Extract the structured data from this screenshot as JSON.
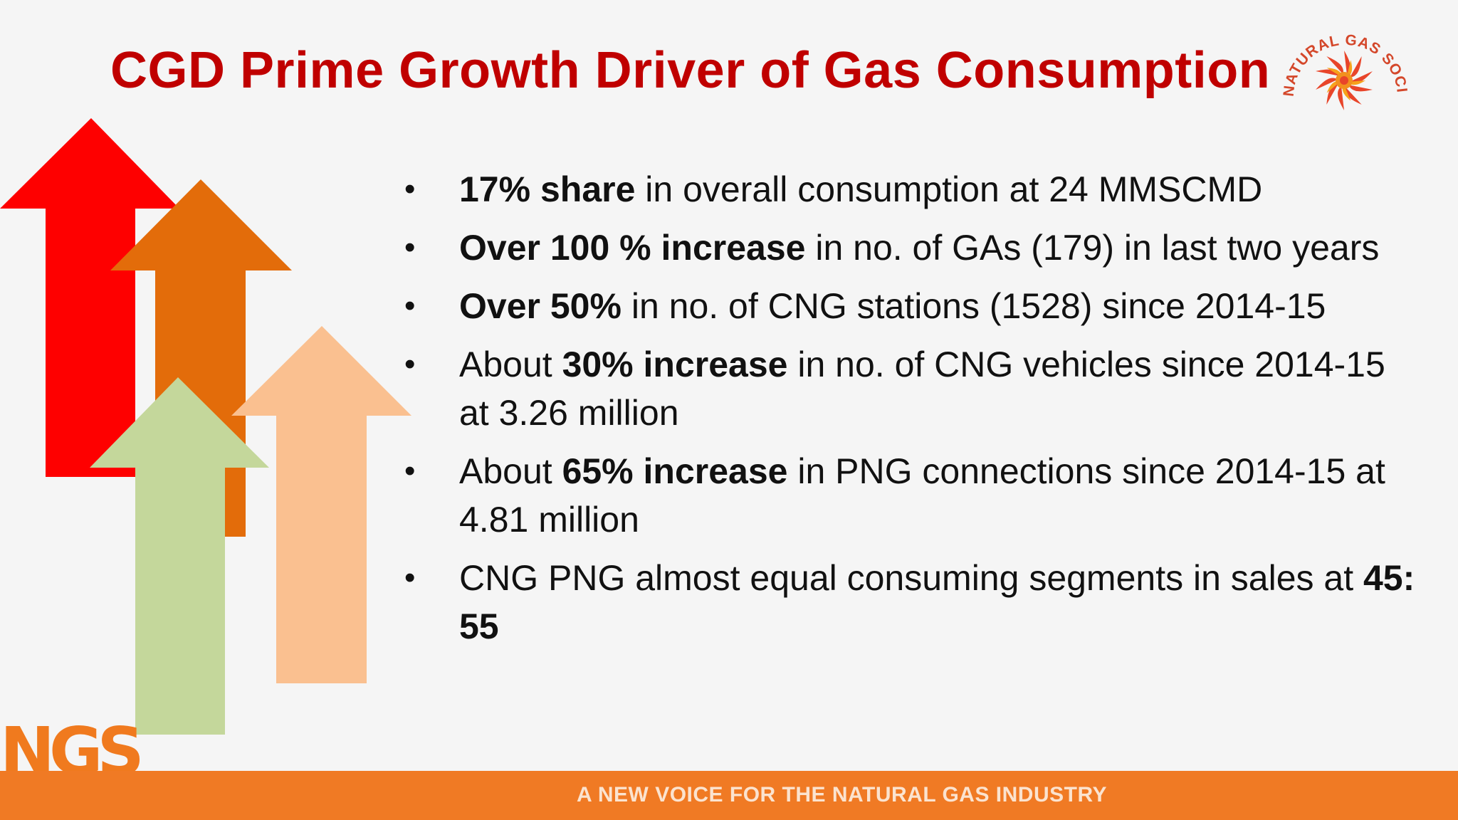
{
  "slide": {
    "title": "CGD Prime Growth Driver of Gas Consumption",
    "logo_text": "NATURAL GAS SOCIETY",
    "brand_mark": "NGS",
    "tagline": "A NEW VOICE FOR THE NATURAL GAS INDUSTRY",
    "bullet_glyph": "•"
  },
  "bullets": [
    {
      "bold": "17% share",
      "text": " in overall consumption  at 24 MMSCMD"
    },
    {
      "bold": "Over 100 %  increase",
      "text": "  in no. of GAs (179) in last two years"
    },
    {
      "bold": "Over 50%",
      "text": "   in no. of CNG stations (1528) since 2014-15"
    },
    {
      "pre": "About ",
      "bold": "30% increase",
      "text": " in no. of CNG vehicles since 2014-15 at 3.26 million"
    },
    {
      "pre": "About ",
      "bold": "65% increase",
      "text": " in PNG connections since 2014-15  at 4.81 million"
    },
    {
      "pre": "CNG PNG almost equal consuming segments in sales at ",
      "bold": "45: 55",
      "text": ""
    }
  ],
  "colors": {
    "title": "#c00000",
    "arrow_red": "#fe0000",
    "arrow_orange": "#e36c0a",
    "arrow_green": "#c4d79b",
    "arrow_peach": "#fac090",
    "footer": "#f07a24"
  },
  "icons": {
    "logo": "sun-flame-logo-icon",
    "arrows": "up-arrow-icon"
  }
}
